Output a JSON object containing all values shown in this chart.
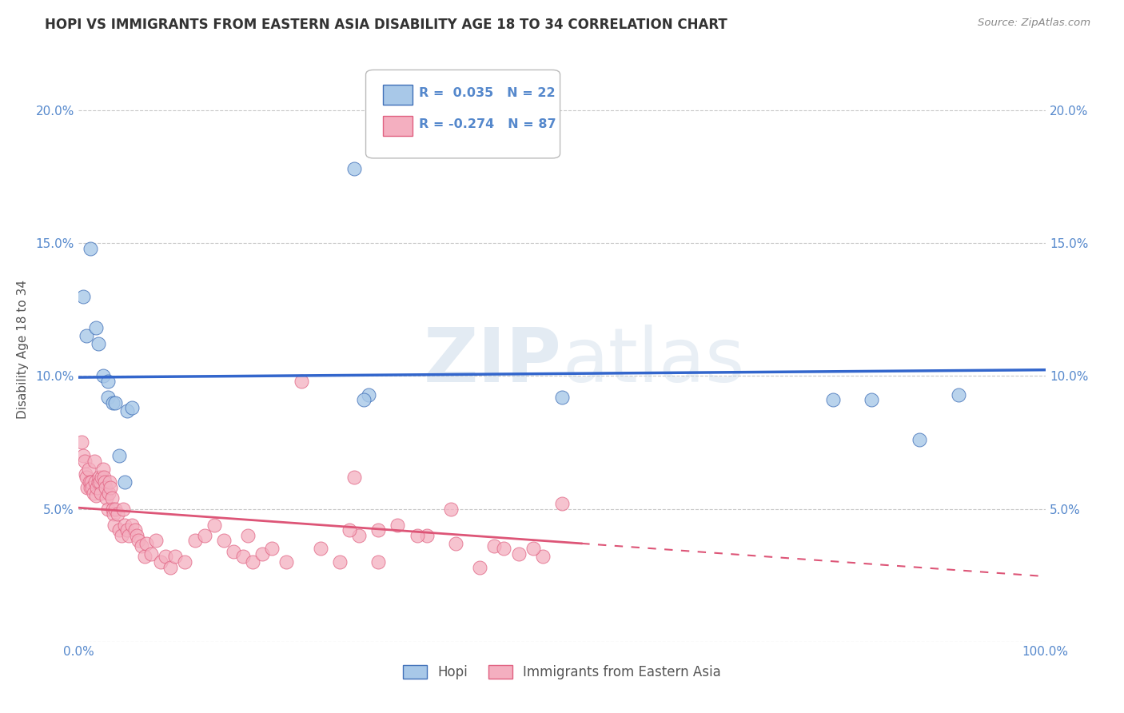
{
  "title": "HOPI VS IMMIGRANTS FROM EASTERN ASIA DISABILITY AGE 18 TO 34 CORRELATION CHART",
  "source": "Source: ZipAtlas.com",
  "ylabel": "Disability Age 18 to 34",
  "watermark_left": "ZIP",
  "watermark_right": "atlas",
  "xlim": [
    0.0,
    1.0
  ],
  "ylim": [
    0.0,
    0.22
  ],
  "xticks": [
    0.0,
    0.1,
    0.2,
    0.3,
    0.4,
    0.5,
    0.6,
    0.7,
    0.8,
    0.9,
    1.0
  ],
  "xticklabels": [
    "0.0%",
    "",
    "",
    "",
    "",
    "",
    "",
    "",
    "",
    "",
    "100.0%"
  ],
  "yticks": [
    0.0,
    0.05,
    0.1,
    0.15,
    0.2
  ],
  "yticklabels": [
    "",
    "5.0%",
    "10.0%",
    "15.0%",
    "20.0%"
  ],
  "hopi_color": "#a8c8e8",
  "immigrants_color": "#f4afc0",
  "hopi_edge_color": "#4070b8",
  "immigrants_edge_color": "#e06080",
  "hopi_line_color": "#3366cc",
  "immigrants_line_color": "#dd5577",
  "hopi_R": 0.035,
  "hopi_N": 22,
  "immigrants_R": -0.274,
  "immigrants_N": 87,
  "legend_labels": [
    "Hopi",
    "Immigrants from Eastern Asia"
  ],
  "hopi_points_x": [
    0.005,
    0.012,
    0.008,
    0.018,
    0.02,
    0.025,
    0.03,
    0.03,
    0.035,
    0.038,
    0.042,
    0.048,
    0.05,
    0.055,
    0.285,
    0.3,
    0.295,
    0.5,
    0.78,
    0.82,
    0.87,
    0.91
  ],
  "hopi_points_y": [
    0.13,
    0.148,
    0.115,
    0.118,
    0.112,
    0.1,
    0.098,
    0.092,
    0.09,
    0.09,
    0.07,
    0.06,
    0.087,
    0.088,
    0.178,
    0.093,
    0.091,
    0.092,
    0.091,
    0.091,
    0.076,
    0.093
  ],
  "immigrants_points_x": [
    0.003,
    0.005,
    0.006,
    0.007,
    0.008,
    0.009,
    0.01,
    0.011,
    0.012,
    0.013,
    0.014,
    0.015,
    0.016,
    0.017,
    0.018,
    0.019,
    0.02,
    0.021,
    0.022,
    0.023,
    0.024,
    0.025,
    0.026,
    0.027,
    0.028,
    0.029,
    0.03,
    0.031,
    0.032,
    0.033,
    0.034,
    0.035,
    0.036,
    0.037,
    0.038,
    0.04,
    0.042,
    0.044,
    0.046,
    0.048,
    0.05,
    0.052,
    0.055,
    0.058,
    0.06,
    0.062,
    0.065,
    0.068,
    0.07,
    0.075,
    0.08,
    0.085,
    0.09,
    0.095,
    0.1,
    0.11,
    0.12,
    0.13,
    0.14,
    0.15,
    0.16,
    0.17,
    0.18,
    0.19,
    0.2,
    0.215,
    0.23,
    0.25,
    0.27,
    0.29,
    0.31,
    0.33,
    0.36,
    0.39,
    0.28,
    0.285,
    0.175,
    0.43,
    0.44,
    0.455,
    0.48,
    0.5,
    0.35,
    0.385,
    0.31,
    0.47,
    0.415
  ],
  "immigrants_points_y": [
    0.075,
    0.07,
    0.068,
    0.063,
    0.062,
    0.058,
    0.065,
    0.06,
    0.058,
    0.06,
    0.058,
    0.056,
    0.068,
    0.06,
    0.055,
    0.058,
    0.06,
    0.062,
    0.06,
    0.056,
    0.062,
    0.065,
    0.062,
    0.06,
    0.058,
    0.054,
    0.05,
    0.056,
    0.06,
    0.058,
    0.054,
    0.05,
    0.048,
    0.044,
    0.05,
    0.048,
    0.042,
    0.04,
    0.05,
    0.044,
    0.042,
    0.04,
    0.044,
    0.042,
    0.04,
    0.038,
    0.036,
    0.032,
    0.037,
    0.033,
    0.038,
    0.03,
    0.032,
    0.028,
    0.032,
    0.03,
    0.038,
    0.04,
    0.044,
    0.038,
    0.034,
    0.032,
    0.03,
    0.033,
    0.035,
    0.03,
    0.098,
    0.035,
    0.03,
    0.04,
    0.042,
    0.044,
    0.04,
    0.037,
    0.042,
    0.062,
    0.04,
    0.036,
    0.035,
    0.033,
    0.032,
    0.052,
    0.04,
    0.05,
    0.03,
    0.035,
    0.028
  ],
  "background_color": "#ffffff",
  "grid_color": "#c8c8c8",
  "title_color": "#333333",
  "source_color": "#888888",
  "tick_color": "#5588cc"
}
